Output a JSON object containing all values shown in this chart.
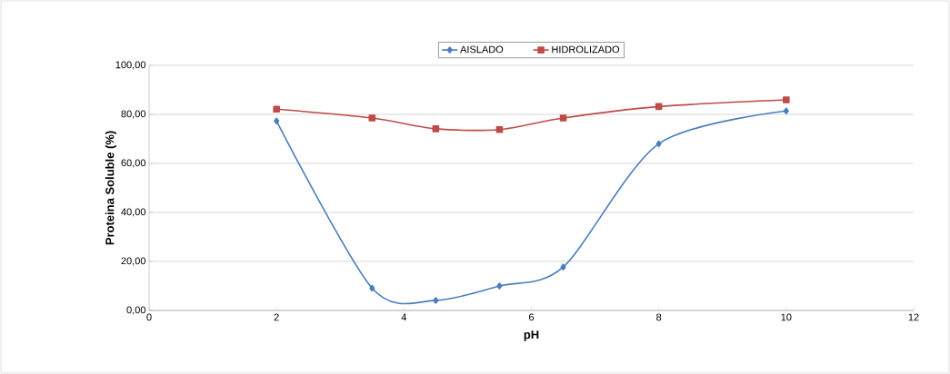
{
  "chart_data": {
    "type": "line",
    "xlabel": "pH",
    "ylabel": "Proteina Soluble (%)",
    "x": [
      2,
      3.5,
      4.5,
      5.5,
      6.5,
      8,
      10
    ],
    "series": [
      {
        "name": "AISLADO",
        "color": "#4a7ebb",
        "marker": "diamond",
        "values": [
          77.3,
          9.1,
          4.1,
          10.0,
          17.7,
          68.0,
          81.4
        ]
      },
      {
        "name": "HIDROLIZADO",
        "color": "#be4b48",
        "marker": "square",
        "values": [
          82.1,
          78.5,
          74.1,
          73.8,
          78.5,
          83.2,
          85.9
        ]
      }
    ],
    "xlim": [
      0,
      12
    ],
    "xticks": [
      0,
      2,
      4,
      6,
      8,
      10,
      12
    ],
    "ylim": [
      0,
      100
    ],
    "yticks": [
      {
        "value": 0,
        "label": "0,00"
      },
      {
        "value": 20,
        "label": "20,00"
      },
      {
        "value": 40,
        "label": "40,00"
      },
      {
        "value": 60,
        "label": "60,00"
      },
      {
        "value": 80,
        "label": "80,00"
      },
      {
        "value": 100,
        "label": "100,00"
      }
    ],
    "grid": "y",
    "legend": "top"
  }
}
